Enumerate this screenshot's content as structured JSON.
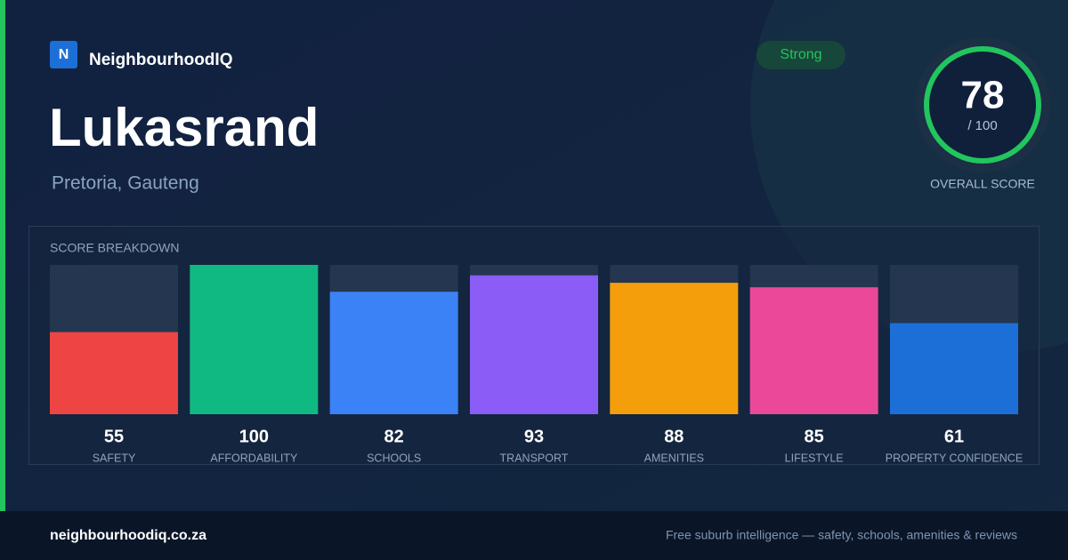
{
  "brand": {
    "logo": "N",
    "name": "NeighbourhoodIQ"
  },
  "suburb": "Lukasrand",
  "location": "Pretoria, Gauteng",
  "badge": "Strong",
  "overall": {
    "score": "78",
    "max_label": "/ 100",
    "label": "OVERALL SCORE"
  },
  "chart_data": {
    "type": "bar",
    "title": "SCORE BREAKDOWN",
    "categories": [
      "SAFETY",
      "AFFORDABILITY",
      "SCHOOLS",
      "TRANSPORT",
      "AMENITIES",
      "LIFESTYLE",
      "PROPERTY CONFIDENCE"
    ],
    "values": [
      55,
      100,
      82,
      93,
      88,
      85,
      61
    ],
    "colors": [
      "#ef4444",
      "#10b981",
      "#3b82f6",
      "#8b5cf6",
      "#f59e0b",
      "#ec4899",
      "#1d6fd8"
    ],
    "ylim": [
      0,
      100
    ]
  },
  "footer": {
    "site": "neighbourhoodiq.co.za",
    "tagline": "Free suburb intelligence — safety, schools, amenities & reviews"
  }
}
